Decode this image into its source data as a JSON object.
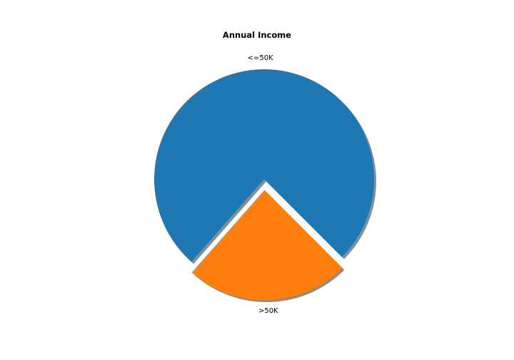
{
  "chart_data": {
    "type": "pie",
    "title": "Annual Income",
    "slices": [
      {
        "label": "<=50K",
        "value": 76,
        "color": "#1f77b4",
        "explode": false
      },
      {
        "label": ">50K",
        "value": 24,
        "color": "#ff7f0e",
        "explode": true
      }
    ],
    "shadow": true,
    "legend": "none"
  }
}
